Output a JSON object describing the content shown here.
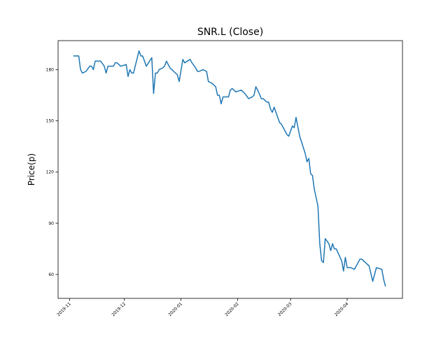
{
  "chart_data": {
    "type": "line",
    "title": "SNR.L (Close)",
    "ylabel": "Price(p)",
    "x": [
      18203,
      18206,
      18207,
      18208,
      18210,
      18212,
      18213,
      18214,
      18215,
      18218,
      18220,
      18221,
      18222,
      18225,
      18226,
      18227,
      18229,
      18232,
      18233,
      18234,
      18235,
      18236,
      18239,
      18240,
      18241,
      18243,
      18246,
      18247,
      18248,
      18249,
      18250,
      18252,
      18253,
      18254,
      18256,
      18257,
      18260,
      18261,
      18263,
      18264,
      18267,
      18268,
      18270,
      18271,
      18272,
      18274,
      18276,
      18277,
      18279,
      18281,
      18282,
      18283,
      18284,
      18285,
      18288,
      18289,
      18290,
      18292,
      18295,
      18297,
      18299,
      18301,
      18302,
      18303,
      18304,
      18306,
      18307,
      18308,
      18309,
      18310,
      18311,
      18312,
      18313,
      18314,
      18316,
      18317,
      18318,
      18320,
      18321,
      18323,
      18324,
      18325,
      18327,
      18330,
      18331,
      18332,
      18333,
      18334,
      18335,
      18337,
      18338,
      18339,
      18340,
      18341,
      18343,
      18344,
      18345,
      18346,
      18347,
      18350,
      18351,
      18352,
      18353,
      18355,
      18357,
      18360,
      18361,
      18365,
      18367,
      18368,
      18369,
      18372,
      18373,
      18374
    ],
    "series": [
      {
        "name": "Close",
        "color": "#1f77b4",
        "values": [
          188,
          188,
          180,
          178,
          179,
          182,
          182,
          180,
          185,
          185,
          182,
          178,
          182,
          182,
          184,
          184,
          182,
          183,
          176,
          180,
          178,
          178,
          191,
          188,
          188,
          182,
          187,
          166,
          178,
          178,
          180,
          181,
          182,
          185,
          181,
          180,
          177,
          173,
          186,
          184,
          186,
          184,
          181,
          179,
          179,
          180,
          179,
          173,
          172,
          170,
          165,
          165,
          160,
          164,
          164,
          168,
          169,
          167,
          168,
          166,
          163,
          164,
          165,
          170,
          168,
          163,
          163,
          162,
          161,
          161,
          157,
          155,
          158,
          155,
          149,
          148,
          146,
          142,
          141,
          147,
          146,
          152,
          141,
          131,
          126,
          128,
          119,
          118,
          110,
          100,
          78,
          68,
          67,
          81,
          78,
          74,
          78,
          75,
          75,
          68,
          62,
          70,
          64,
          64,
          63,
          69,
          69,
          65,
          56,
          60,
          64,
          63,
          57,
          53
        ]
      }
    ],
    "xlim": [
      18194.7,
      18383.3
    ],
    "ylim": [
      46,
      197
    ],
    "xticks": [
      {
        "value": 18201,
        "label": "2019-11"
      },
      {
        "value": 18231,
        "label": "2019-12"
      },
      {
        "value": 18262,
        "label": "2020-01"
      },
      {
        "value": 18293,
        "label": "2020-02"
      },
      {
        "value": 18322,
        "label": "2020-03"
      },
      {
        "value": 18353,
        "label": "2020-04"
      }
    ],
    "yticks": [
      60,
      90,
      120,
      150,
      180
    ],
    "grid": false
  }
}
